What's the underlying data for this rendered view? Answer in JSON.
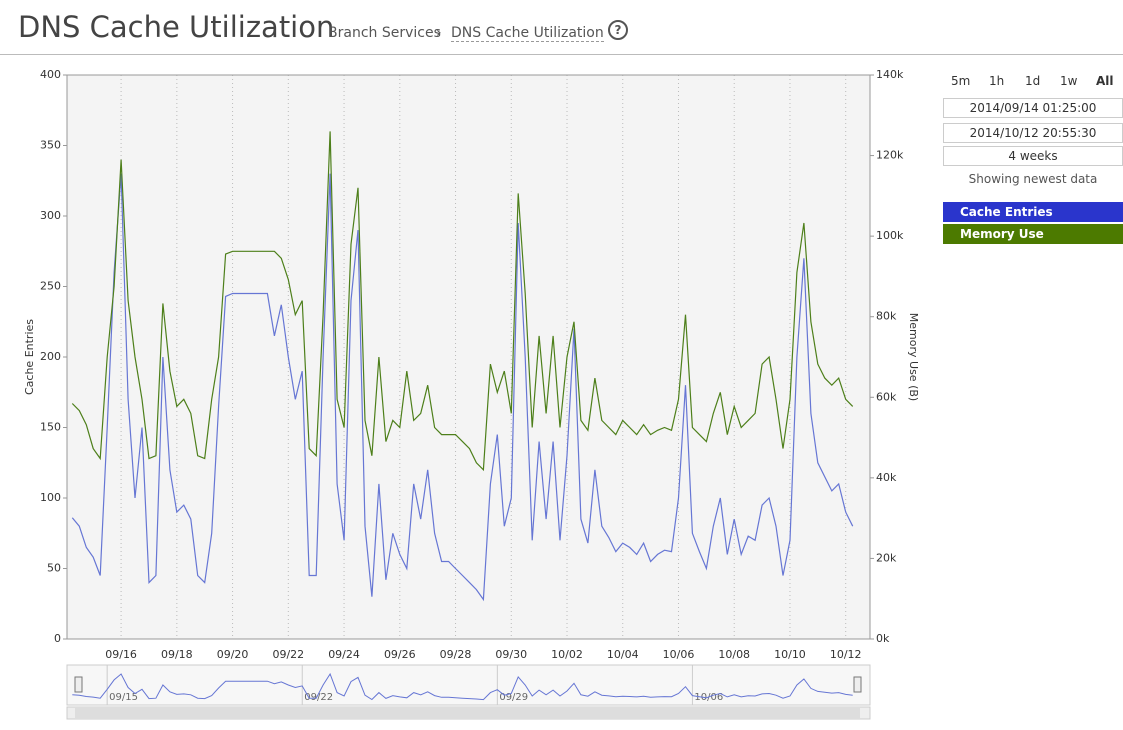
{
  "header": {
    "title": "DNS Cache Utilization",
    "breadcrumb": [
      "Branch Services",
      "DNS Cache Utilization"
    ],
    "help": "?"
  },
  "controls": {
    "ranges": [
      "5m",
      "1h",
      "1d",
      "1w",
      "All"
    ],
    "start": "2014/09/14 01:25:00",
    "end": "2014/10/12 20:55:30",
    "duration": "4 weeks",
    "status": "Showing newest data"
  },
  "chart_data": {
    "type": "line",
    "xlim": [
      "2014/09/14 01:25:00",
      "2014/10/12 20:55:30"
    ],
    "xticks": [
      {
        "value": "2014/09/16 00:00",
        "label": "09/16"
      },
      {
        "value": "2014/09/18 00:00",
        "label": "09/18"
      },
      {
        "value": "2014/09/20 00:00",
        "label": "09/20"
      },
      {
        "value": "2014/09/22 00:00",
        "label": "09/22"
      },
      {
        "value": "2014/09/24 00:00",
        "label": "09/24"
      },
      {
        "value": "2014/09/26 00:00",
        "label": "09/26"
      },
      {
        "value": "2014/09/28 00:00",
        "label": "09/28"
      },
      {
        "value": "2014/09/30 00:00",
        "label": "09/30"
      },
      {
        "value": "2014/10/02 00:00",
        "label": "10/02"
      },
      {
        "value": "2014/10/04 00:00",
        "label": "10/04"
      },
      {
        "value": "2014/10/06 00:00",
        "label": "10/06"
      },
      {
        "value": "2014/10/08 00:00",
        "label": "10/08"
      },
      {
        "value": "2014/10/10 00:00",
        "label": "10/10"
      },
      {
        "value": "2014/10/12 00:00",
        "label": "10/12"
      }
    ],
    "navigator_ticks": [
      {
        "value": "2014/09/15 12:00",
        "label": "09/15"
      },
      {
        "value": "2014/09/22 12:00",
        "label": "09/22"
      },
      {
        "value": "2014/09/29 12:00",
        "label": "09/29"
      },
      {
        "value": "2014/10/06 12:00",
        "label": "10/06"
      }
    ],
    "ylabel": "Cache Entries",
    "y2label": "Memory Use (B)",
    "ylim": [
      0,
      400
    ],
    "yticks": [
      0,
      50,
      100,
      150,
      200,
      250,
      300,
      350,
      400
    ],
    "y2lim": [
      0,
      140000
    ],
    "y2ticks": [
      {
        "value": 0,
        "label": "0k"
      },
      {
        "value": 20000,
        "label": "20k"
      },
      {
        "value": 40000,
        "label": "40k"
      },
      {
        "value": 60000,
        "label": "60k"
      },
      {
        "value": 80000,
        "label": "80k"
      },
      {
        "value": 100000,
        "label": "100k"
      },
      {
        "value": 120000,
        "label": "120k"
      },
      {
        "value": 140000,
        "label": "140k"
      }
    ],
    "grid": true,
    "x": [
      "2014/09/14 06:00",
      "2014/09/14 12:00",
      "2014/09/14 18:00",
      "2014/09/15 00:00",
      "2014/09/15 06:00",
      "2014/09/15 12:00",
      "2014/09/15 18:00",
      "2014/09/16 00:00",
      "2014/09/16 06:00",
      "2014/09/16 12:00",
      "2014/09/16 18:00",
      "2014/09/17 00:00",
      "2014/09/17 06:00",
      "2014/09/17 12:00",
      "2014/09/17 18:00",
      "2014/09/18 00:00",
      "2014/09/18 06:00",
      "2014/09/18 12:00",
      "2014/09/18 18:00",
      "2014/09/19 00:00",
      "2014/09/19 06:00",
      "2014/09/19 12:00",
      "2014/09/19 18:00",
      "2014/09/20 00:00",
      "2014/09/20 06:00",
      "2014/09/20 12:00",
      "2014/09/20 18:00",
      "2014/09/21 00:00",
      "2014/09/21 06:00",
      "2014/09/21 12:00",
      "2014/09/21 18:00",
      "2014/09/22 00:00",
      "2014/09/22 06:00",
      "2014/09/22 12:00",
      "2014/09/22 18:00",
      "2014/09/23 00:00",
      "2014/09/23 06:00",
      "2014/09/23 12:00",
      "2014/09/23 18:00",
      "2014/09/24 00:00",
      "2014/09/24 06:00",
      "2014/09/24 12:00",
      "2014/09/24 18:00",
      "2014/09/25 00:00",
      "2014/09/25 06:00",
      "2014/09/25 12:00",
      "2014/09/25 18:00",
      "2014/09/26 00:00",
      "2014/09/26 06:00",
      "2014/09/26 12:00",
      "2014/09/26 18:00",
      "2014/09/27 00:00",
      "2014/09/27 06:00",
      "2014/09/27 12:00",
      "2014/09/27 18:00",
      "2014/09/28 00:00",
      "2014/09/28 06:00",
      "2014/09/28 12:00",
      "2014/09/28 18:00",
      "2014/09/29 00:00",
      "2014/09/29 06:00",
      "2014/09/29 12:00",
      "2014/09/29 18:00",
      "2014/09/30 00:00",
      "2014/09/30 06:00",
      "2014/09/30 12:00",
      "2014/09/30 18:00",
      "2014/10/01 00:00",
      "2014/10/01 06:00",
      "2014/10/01 12:00",
      "2014/10/01 18:00",
      "2014/10/02 00:00",
      "2014/10/02 06:00",
      "2014/10/02 12:00",
      "2014/10/02 18:00",
      "2014/10/03 00:00",
      "2014/10/03 06:00",
      "2014/10/03 12:00",
      "2014/10/03 18:00",
      "2014/10/04 00:00",
      "2014/10/04 06:00",
      "2014/10/04 12:00",
      "2014/10/04 18:00",
      "2014/10/05 00:00",
      "2014/10/05 06:00",
      "2014/10/05 12:00",
      "2014/10/05 18:00",
      "2014/10/06 00:00",
      "2014/10/06 06:00",
      "2014/10/06 12:00",
      "2014/10/06 18:00",
      "2014/10/07 00:00",
      "2014/10/07 06:00",
      "2014/10/07 12:00",
      "2014/10/07 18:00",
      "2014/10/08 00:00",
      "2014/10/08 06:00",
      "2014/10/08 12:00",
      "2014/10/08 18:00",
      "2014/10/09 00:00",
      "2014/10/09 06:00",
      "2014/10/09 12:00",
      "2014/10/09 18:00",
      "2014/10/10 00:00",
      "2014/10/10 06:00",
      "2014/10/10 12:00",
      "2014/10/10 18:00",
      "2014/10/11 00:00",
      "2014/10/11 06:00",
      "2014/10/11 12:00",
      "2014/10/11 18:00",
      "2014/10/12 00:00",
      "2014/10/12 06:00"
    ],
    "series": [
      {
        "name": "Cache Entries",
        "color": "#2a35cc",
        "line_color": "#6676d4",
        "values": [
          86,
          80,
          65,
          58,
          45,
          150,
          260,
          330,
          170,
          100,
          150,
          40,
          45,
          200,
          120,
          90,
          95,
          85,
          45,
          40,
          75,
          165,
          243,
          245,
          245,
          245,
          245,
          245,
          245,
          215,
          237,
          200,
          170,
          190,
          45,
          45,
          200,
          330,
          110,
          70,
          240,
          290,
          80,
          30,
          110,
          42,
          75,
          60,
          50,
          110,
          85,
          120,
          75,
          55,
          55,
          50,
          45,
          40,
          35,
          28,
          110,
          145,
          80,
          100,
          295,
          200,
          70,
          140,
          85,
          140,
          70,
          130,
          220,
          85,
          68,
          120,
          80,
          72,
          62,
          68,
          65,
          60,
          68,
          55,
          60,
          63,
          62,
          100,
          180,
          75,
          62,
          50,
          80,
          100,
          60,
          85,
          60,
          73,
          70,
          95,
          100,
          80,
          45,
          70,
          200,
          270,
          160,
          125,
          115,
          105,
          110,
          90,
          80
        ]
      },
      {
        "name": "Memory Use",
        "color": "#4c7a00",
        "line_color": "#4d7f1a",
        "axis": "y2",
        "values": [
          58450,
          56700,
          53200,
          47250,
          44800,
          70000,
          87500,
          119000,
          84000,
          70000,
          59500,
          44800,
          45500,
          83300,
          66500,
          57750,
          59500,
          56000,
          45500,
          44800,
          59500,
          70000,
          95550,
          96250,
          96250,
          96250,
          96250,
          96250,
          96250,
          96250,
          94500,
          89250,
          80500,
          84000,
          47250,
          45500,
          80500,
          126000,
          59500,
          52500,
          98000,
          112000,
          54250,
          45500,
          70000,
          49000,
          54250,
          52500,
          66500,
          54250,
          56000,
          63000,
          52500,
          50750,
          50750,
          50750,
          49000,
          47250,
          43750,
          42000,
          68250,
          61250,
          66500,
          56000,
          110600,
          85750,
          52500,
          75250,
          56000,
          75250,
          52500,
          70000,
          78750,
          54250,
          51800,
          64750,
          54250,
          52500,
          50750,
          54250,
          52500,
          50750,
          53200,
          50750,
          51800,
          52500,
          51800,
          59500,
          80500,
          52500,
          50750,
          49000,
          56000,
          61250,
          50750,
          57750,
          52500,
          54250,
          56000,
          68250,
          70000,
          59500,
          47250,
          59500,
          91000,
          103250,
          78750,
          68250,
          64750,
          63000,
          64750,
          59500,
          57750
        ]
      }
    ]
  }
}
